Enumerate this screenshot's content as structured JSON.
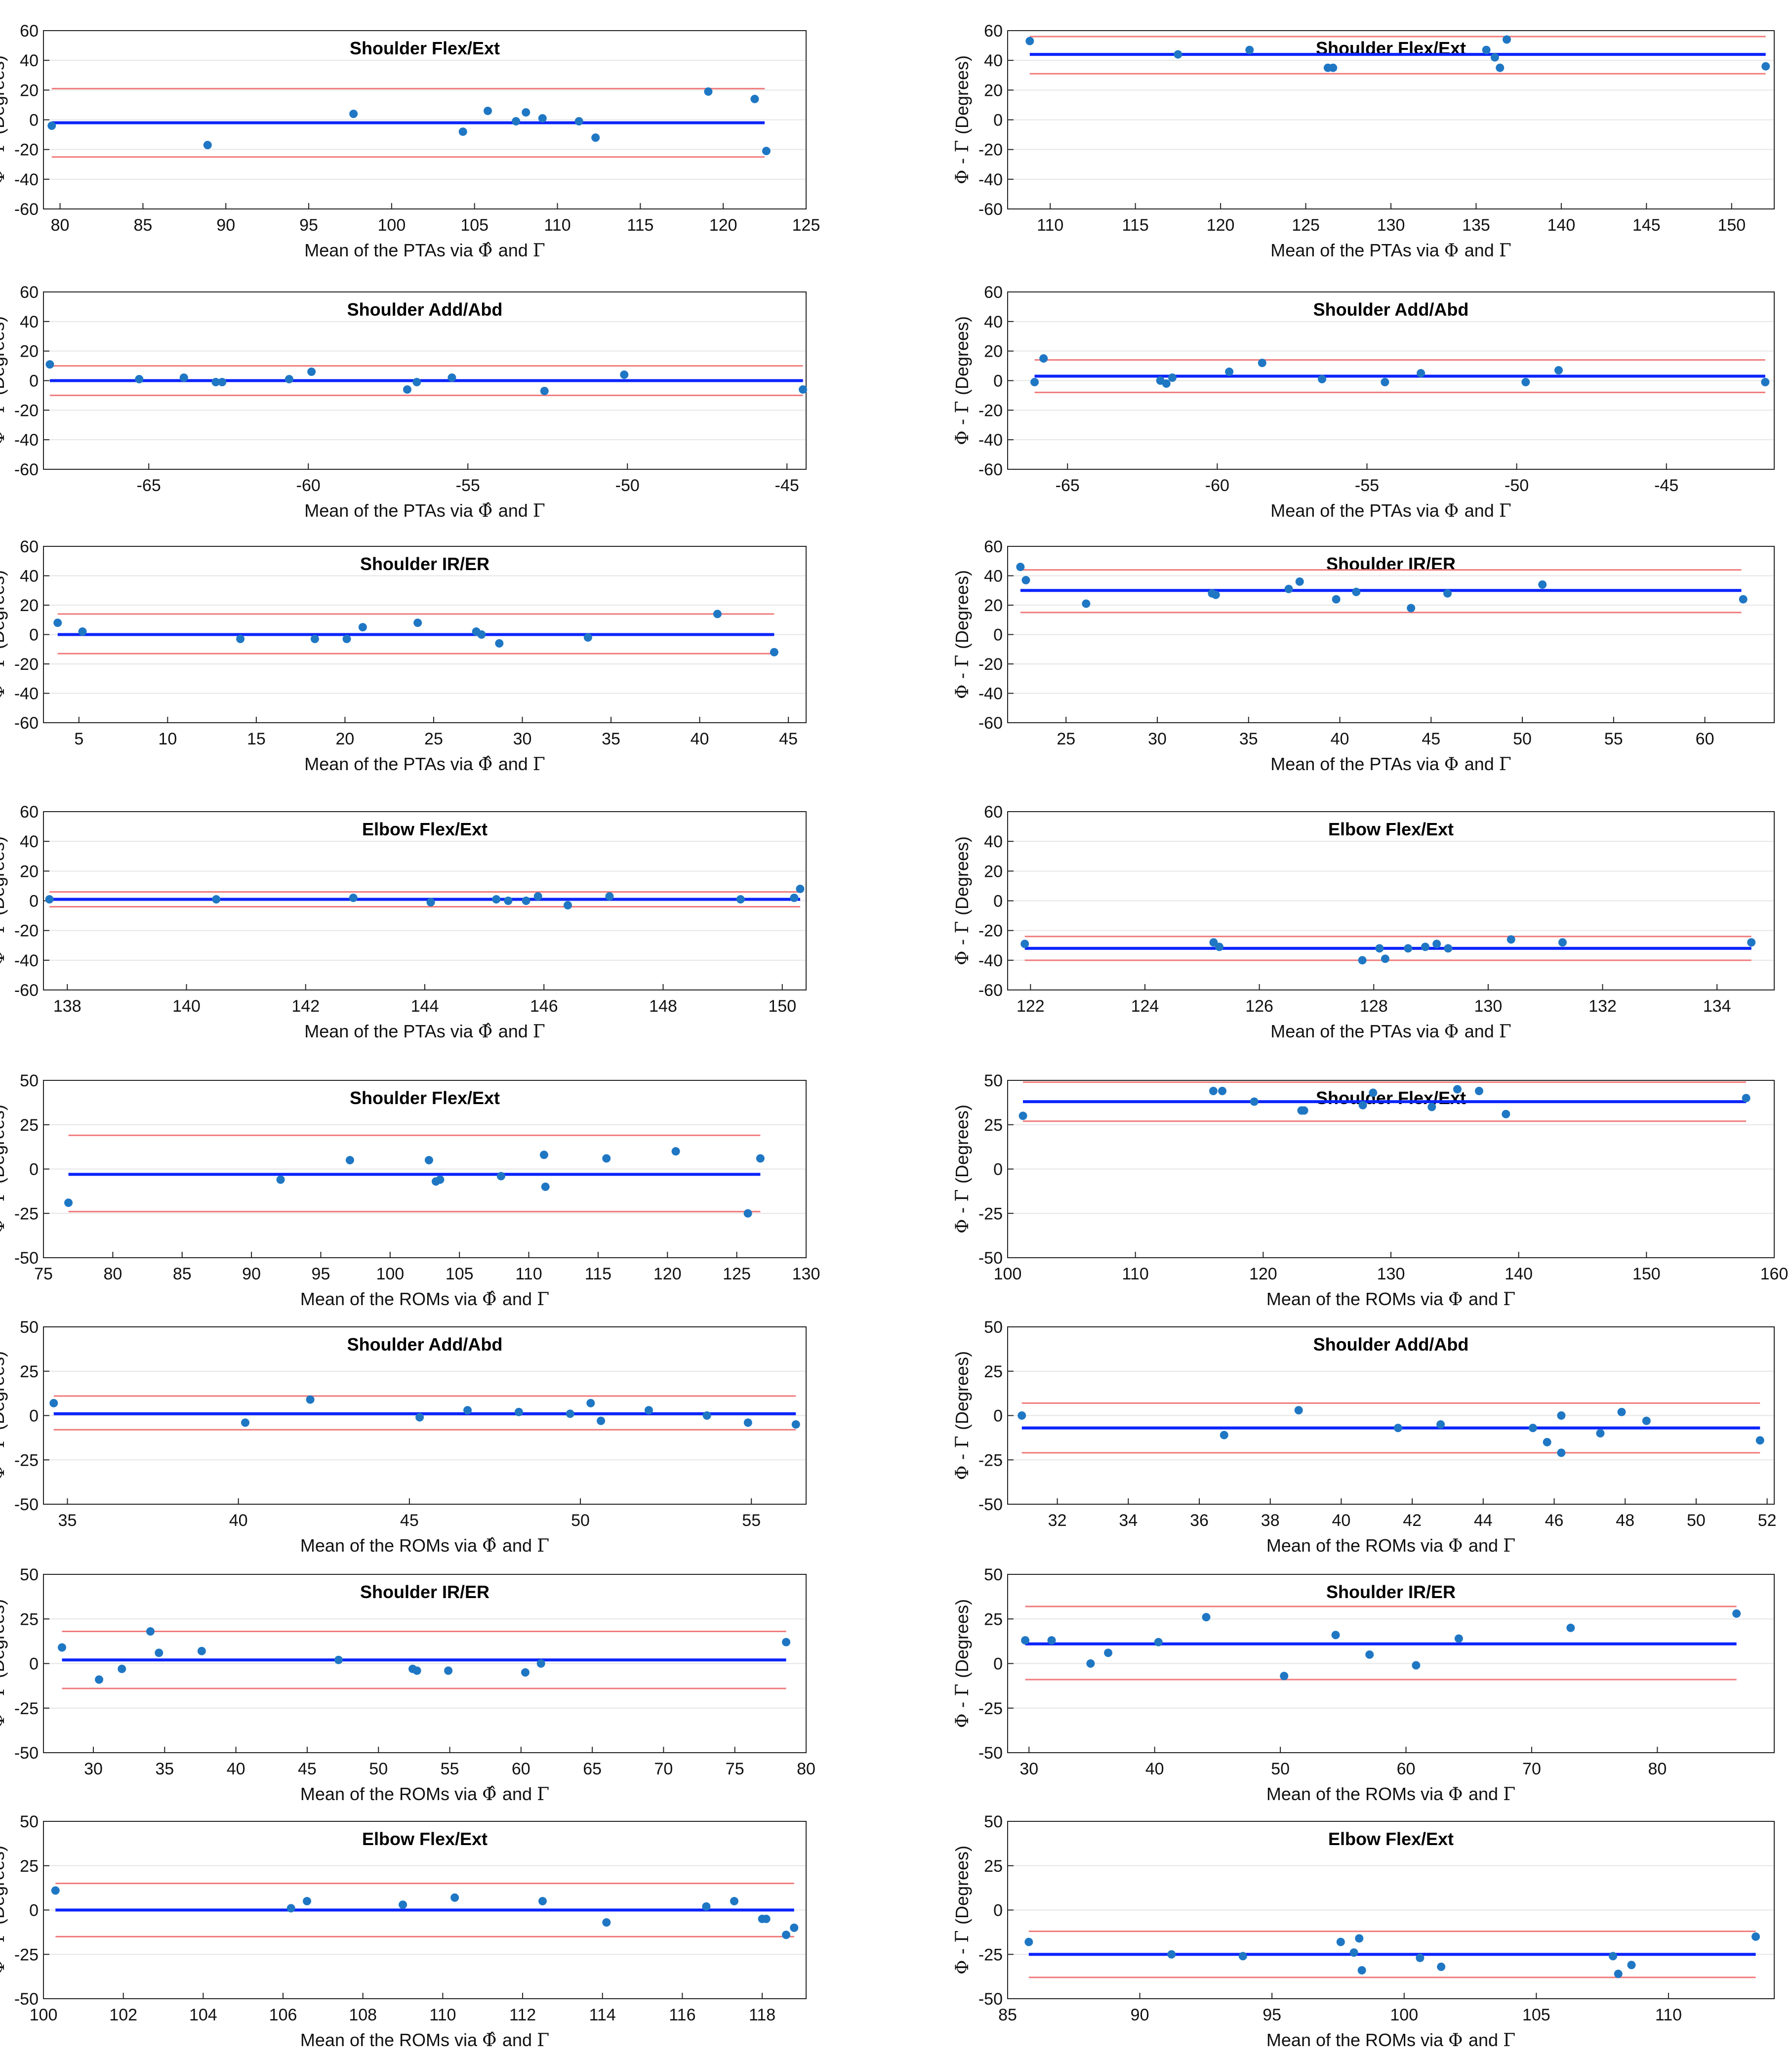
{
  "colors": {
    "mean_line": "#0b24fb",
    "limit_line": "#f07a7a",
    "point": "#1f77c4",
    "axis": "#222222",
    "grid": "#e6e6e6"
  },
  "labels": {
    "ylabel_left": "Φ̂ - Γ",
    "ylabel_right": "Φ - Γ",
    "ylabel_unit": "(Degrees)",
    "pta_prefix": "Mean of the PTAs via",
    "rom_prefix": "Mean of the ROMs via",
    "phi_hat": "Φ̂",
    "phi": "Φ",
    "and": "and",
    "gamma": "Γ"
  },
  "chart_data": [
    {
      "type": "scatter",
      "title": "Shoulder Flex/Ext",
      "xlabel": "Mean of the PTAs via Φ̂ and Γ",
      "ylabel": "Φ̂ - Γ (Degrees)",
      "xlim": [
        79,
        125
      ],
      "ylim": [
        -60,
        60
      ],
      "xticks": [
        80,
        85,
        90,
        95,
        100,
        105,
        110,
        115,
        120,
        125
      ],
      "yticks": [
        -60,
        -40,
        -20,
        0,
        20,
        40,
        60
      ],
      "grid": "horizontal",
      "mean": -2,
      "upper": 21,
      "lower": -25,
      "line_x": [
        79.5,
        122.5
      ],
      "x": [
        79.5,
        88.9,
        97.7,
        104.3,
        105.8,
        107.5,
        108.1,
        109.1,
        111.3,
        112.3,
        119.1,
        121.9,
        122.6
      ],
      "y": [
        -4,
        -17,
        4,
        -8,
        6,
        -1,
        5,
        1,
        -1,
        -12,
        19,
        14,
        -21
      ]
    },
    {
      "type": "scatter",
      "title": "Shoulder Flex/Ext",
      "xlabel": "Mean of the PTAs via Φ and Γ",
      "ylabel": "Φ - Γ (Degrees)",
      "xlim": [
        107.5,
        152.5
      ],
      "ylim": [
        -60,
        60
      ],
      "xticks": [
        110,
        115,
        120,
        125,
        130,
        135,
        140,
        145,
        150
      ],
      "yticks": [
        -60,
        -40,
        -20,
        0,
        20,
        40,
        60
      ],
      "grid": "horizontal",
      "mean": 44,
      "upper": 56,
      "lower": 31,
      "line_x": [
        108.8,
        152
      ],
      "x": [
        108.8,
        117.5,
        121.7,
        126.3,
        126.6,
        135.6,
        136.1,
        136.4,
        136.8,
        152
      ],
      "y": [
        53,
        44,
        47,
        35,
        35,
        47,
        42,
        35,
        54,
        36
      ]
    },
    {
      "type": "scatter",
      "title": "Shoulder Add/Abd",
      "xlabel": "Mean of the PTAs via Φ̂ and Γ",
      "ylabel": "Φ̂ - Γ (Degrees)",
      "xlim": [
        -68.3,
        -44.4
      ],
      "ylim": [
        -60,
        60
      ],
      "xticks": [
        -65,
        -60,
        -55,
        -50,
        -45
      ],
      "yticks": [
        -60,
        -40,
        -20,
        0,
        20,
        40,
        60
      ],
      "grid": "horizontal",
      "mean": 0,
      "upper": 10,
      "lower": -10,
      "line_x": [
        -68.1,
        -44.5
      ],
      "x": [
        -68.1,
        -65.3,
        -63.9,
        -62.9,
        -62.7,
        -60.6,
        -59.9,
        -56.9,
        -56.6,
        -55.5,
        -52.6,
        -50.1,
        -44.5
      ],
      "y": [
        11,
        1,
        2,
        -1,
        -1,
        1,
        6,
        -6,
        -1,
        2,
        -7,
        4,
        -6
      ]
    },
    {
      "type": "scatter",
      "title": "Shoulder Add/Abd",
      "xlabel": "Mean of the PTAs via Φ and Γ",
      "ylabel": "Φ - Γ (Degrees)",
      "xlim": [
        -67,
        -41.4
      ],
      "ylim": [
        -60,
        60
      ],
      "xticks": [
        -65,
        -60,
        -55,
        -50,
        -45
      ],
      "yticks": [
        -60,
        -40,
        -20,
        0,
        20,
        40,
        60
      ],
      "grid": "horizontal",
      "mean": 3,
      "upper": 14,
      "lower": -8,
      "line_x": [
        -66.1,
        -41.7
      ],
      "x": [
        -66.1,
        -65.8,
        -61.9,
        -61.7,
        -61.5,
        -59.6,
        -58.5,
        -56.5,
        -54.4,
        -53.2,
        -49.7,
        -48.6,
        -41.7
      ],
      "y": [
        -1,
        15,
        0,
        -2,
        2,
        6,
        12,
        1,
        -1,
        5,
        -1,
        7,
        -1
      ]
    },
    {
      "type": "scatter",
      "title": "Shoulder IR/ER",
      "xlabel": "Mean of the PTAs via Φ̂ and Γ",
      "ylabel": "Φ̂ - Γ (Degrees)",
      "xlim": [
        3,
        46
      ],
      "ylim": [
        -60,
        60
      ],
      "xticks": [
        5,
        10,
        15,
        20,
        25,
        30,
        35,
        40,
        45
      ],
      "yticks": [
        -60,
        -40,
        -20,
        0,
        20,
        40,
        60
      ],
      "grid": "horizontal",
      "mean": 0,
      "upper": 14,
      "lower": -13,
      "line_x": [
        3.8,
        44.2
      ],
      "x": [
        3.8,
        5.2,
        14.1,
        18.3,
        20.1,
        21.0,
        24.1,
        27.4,
        27.7,
        28.7,
        33.7,
        41.0,
        44.2
      ],
      "y": [
        8,
        2,
        -3,
        -3,
        -3,
        5,
        8,
        2,
        0,
        -6,
        -2,
        14,
        -12
      ]
    },
    {
      "type": "scatter",
      "title": "Shoulder IR/ER",
      "xlabel": "Mean of the PTAs via Φ and Γ",
      "ylabel": "Φ - Γ (Degrees)",
      "xlim": [
        21.8,
        63.8
      ],
      "ylim": [
        -60,
        60
      ],
      "xticks": [
        25,
        30,
        35,
        40,
        45,
        50,
        55,
        60
      ],
      "yticks": [
        -60,
        -40,
        -20,
        0,
        20,
        40,
        60
      ],
      "grid": "horizontal",
      "mean": 30,
      "upper": 44,
      "lower": 15,
      "line_x": [
        22.5,
        62
      ],
      "x": [
        22.5,
        22.8,
        26.1,
        33.0,
        33.2,
        37.2,
        37.8,
        39.8,
        40.9,
        43.9,
        45.9,
        51.1,
        62.1
      ],
      "y": [
        46,
        37,
        21,
        28,
        27,
        31,
        36,
        24,
        29,
        18,
        28,
        34,
        24
      ]
    },
    {
      "type": "scatter",
      "title": "Elbow Flex/Ext",
      "xlabel": "Mean of the PTAs via Φ̂ and Γ",
      "ylabel": "Φ̂ - Γ (Degrees)",
      "xlim": [
        137.6,
        150.4
      ],
      "ylim": [
        -60,
        60
      ],
      "xticks": [
        138,
        140,
        142,
        144,
        146,
        148,
        150
      ],
      "yticks": [
        -60,
        -40,
        -20,
        0,
        20,
        40,
        60
      ],
      "grid": "horizontal",
      "mean": 1,
      "upper": 6,
      "lower": -4,
      "line_x": [
        137.7,
        150.3
      ],
      "x": [
        137.7,
        140.5,
        142.8,
        144.1,
        145.2,
        145.4,
        145.7,
        145.9,
        146.4,
        147.1,
        149.3,
        150.2,
        150.3
      ],
      "y": [
        1,
        1,
        2,
        -1,
        1,
        0,
        0,
        3,
        -3,
        3,
        1,
        2,
        8
      ]
    },
    {
      "type": "scatter",
      "title": "Elbow Flex/Ext",
      "xlabel": "Mean of the PTAs via Φ and Γ",
      "ylabel": "Φ - Γ (Degrees)",
      "xlim": [
        121.6,
        135
      ],
      "ylim": [
        -60,
        60
      ],
      "xticks": [
        122,
        124,
        126,
        128,
        130,
        132,
        134
      ],
      "yticks": [
        -60,
        -40,
        -20,
        0,
        20,
        40,
        60
      ],
      "grid": "horizontal",
      "mean": -32,
      "upper": -24,
      "lower": -40,
      "line_x": [
        121.9,
        134.6
      ],
      "x": [
        121.9,
        125.2,
        125.3,
        127.8,
        128.1,
        128.2,
        128.6,
        128.9,
        129.1,
        129.3,
        130.4,
        131.3,
        134.6
      ],
      "y": [
        -29,
        -28,
        -31,
        -40,
        -32,
        -39,
        -32,
        -31,
        -29,
        -32,
        -26,
        -28,
        -28
      ]
    },
    {
      "type": "scatter",
      "title": "Shoulder Flex/Ext",
      "xlabel": "Mean of the ROMs via Φ̂ and Γ",
      "ylabel": "Φ̂ - Γ (Degrees)",
      "xlim": [
        75,
        130
      ],
      "ylim": [
        -50,
        50
      ],
      "xticks": [
        75,
        80,
        85,
        90,
        95,
        100,
        105,
        110,
        115,
        120,
        125,
        130
      ],
      "yticks": [
        -50,
        -25,
        0,
        25,
        50
      ],
      "grid": "horizontal",
      "mean": -3,
      "upper": 19,
      "lower": -24,
      "line_x": [
        76.8,
        126.7
      ],
      "x": [
        76.8,
        92.1,
        97.1,
        102.8,
        103.3,
        103.6,
        108.0,
        111.1,
        111.2,
        115.6,
        120.6,
        125.8,
        126.7
      ],
      "y": [
        -19,
        -6,
        5,
        5,
        -7,
        -6,
        -4,
        8,
        -10,
        6,
        10,
        -25,
        6
      ]
    },
    {
      "type": "scatter",
      "title": "Shoulder Flex/Ext",
      "xlabel": "Mean of the ROMs via Φ and Γ",
      "ylabel": "Φ - Γ (Degrees)",
      "xlim": [
        100,
        160
      ],
      "ylim": [
        -50,
        50
      ],
      "xticks": [
        100,
        110,
        120,
        130,
        140,
        150,
        160
      ],
      "yticks": [
        -50,
        -25,
        0,
        25,
        50
      ],
      "grid": "horizontal",
      "mean": 38,
      "upper": 49,
      "lower": 27,
      "line_x": [
        101.2,
        157.8
      ],
      "x": [
        101.2,
        116.1,
        116.8,
        119.3,
        123.0,
        123.2,
        127.8,
        128.6,
        133.2,
        135.2,
        136.9,
        139.0,
        157.8
      ],
      "y": [
        30,
        44,
        44,
        38,
        33,
        33,
        36,
        43,
        35,
        45,
        44,
        31,
        40
      ]
    },
    {
      "type": "scatter",
      "title": "Shoulder Add/Abd",
      "xlabel": "Mean of the ROMs via Φ̂ and Γ",
      "ylabel": "Φ̂ - Γ (Degrees)",
      "xlim": [
        34.3,
        56.6
      ],
      "ylim": [
        -50,
        50
      ],
      "xticks": [
        35,
        40,
        45,
        50,
        55
      ],
      "yticks": [
        -50,
        -25,
        0,
        25,
        50
      ],
      "grid": "horizontal",
      "mean": 1,
      "upper": 11,
      "lower": -8,
      "line_x": [
        34.6,
        56.3
      ],
      "x": [
        34.6,
        40.2,
        42.1,
        45.3,
        46.7,
        48.2,
        49.7,
        50.3,
        50.6,
        52.0,
        53.7,
        54.9,
        56.3
      ],
      "y": [
        7,
        -4,
        9,
        -1,
        3,
        2,
        1,
        7,
        -3,
        3,
        0,
        -4,
        -5
      ]
    },
    {
      "type": "scatter",
      "title": "Shoulder Add/Abd",
      "xlabel": "Mean of the ROMs via Φ and Γ",
      "ylabel": "Φ - Γ (Degrees)",
      "xlim": [
        30.6,
        52.2
      ],
      "ylim": [
        -50,
        50
      ],
      "xticks": [
        32,
        34,
        36,
        38,
        40,
        42,
        44,
        46,
        48,
        50,
        52
      ],
      "yticks": [
        -50,
        -25,
        0,
        25,
        50
      ],
      "grid": "horizontal",
      "mean": -7,
      "upper": 7,
      "lower": -21,
      "line_x": [
        31,
        51.8
      ],
      "x": [
        31.0,
        36.7,
        38.8,
        41.6,
        42.8,
        45.4,
        45.8,
        46.2,
        46.2,
        47.3,
        47.9,
        48.6,
        51.8
      ],
      "y": [
        0,
        -11,
        3,
        -7,
        -5,
        -7,
        -15,
        -21,
        0,
        -10,
        2,
        -3,
        -14
      ]
    },
    {
      "type": "scatter",
      "title": "Shoulder IR/ER",
      "xlabel": "Mean of the ROMs via Φ̂ and Γ",
      "ylabel": "Φ̂ - Γ (Degrees)",
      "xlim": [
        26.5,
        80
      ],
      "ylim": [
        -50,
        50
      ],
      "xticks": [
        30,
        35,
        40,
        45,
        50,
        55,
        60,
        65,
        70,
        75,
        80
      ],
      "yticks": [
        -50,
        -25,
        0,
        25,
        50
      ],
      "grid": "horizontal",
      "mean": 2,
      "upper": 18,
      "lower": -14,
      "line_x": [
        27.8,
        78.6
      ],
      "x": [
        27.8,
        30.4,
        32.0,
        34.0,
        34.6,
        37.6,
        47.2,
        52.4,
        52.7,
        54.9,
        60.3,
        61.4,
        78.6
      ],
      "y": [
        9,
        -9,
        -3,
        18,
        6,
        7,
        2,
        -3,
        -4,
        -4,
        -5,
        0,
        12
      ]
    },
    {
      "type": "scatter",
      "title": "Shoulder IR/ER",
      "xlabel": "Mean of the ROMs via Φ and Γ",
      "ylabel": "Φ - Γ (Degrees)",
      "xlim": [
        28.3,
        89.3
      ],
      "ylim": [
        -50,
        50
      ],
      "xticks": [
        30,
        40,
        50,
        60,
        70,
        80
      ],
      "yticks": [
        -50,
        -25,
        0,
        25,
        50
      ],
      "grid": "horizontal",
      "mean": 11,
      "upper": 32,
      "lower": -9,
      "line_x": [
        29.7,
        86.3
      ],
      "x": [
        29.7,
        31.8,
        34.9,
        36.3,
        40.3,
        44.1,
        50.3,
        54.4,
        57.1,
        60.8,
        64.2,
        73.1,
        86.3
      ],
      "y": [
        13,
        13,
        0,
        6,
        12,
        26,
        -7,
        16,
        5,
        -1,
        14,
        20,
        28
      ]
    },
    {
      "type": "scatter",
      "title": "Elbow Flex/Ext",
      "xlabel": "Mean of the ROMs via Φ̂ and Γ",
      "ylabel": "Φ̂ - Γ (Degrees)",
      "xlim": [
        100,
        119.1
      ],
      "ylim": [
        -50,
        50
      ],
      "xticks": [
        100,
        102,
        104,
        106,
        108,
        110,
        112,
        114,
        116,
        118
      ],
      "yticks": [
        -50,
        -25,
        0,
        25,
        50
      ],
      "grid": "horizontal",
      "mean": 0,
      "upper": 15,
      "lower": -15,
      "line_x": [
        100.3,
        118.8
      ],
      "x": [
        100.3,
        106.2,
        106.6,
        109.0,
        110.3,
        112.5,
        114.1,
        116.6,
        117.3,
        118.0,
        118.1,
        118.6,
        118.8
      ],
      "y": [
        11,
        1,
        5,
        3,
        7,
        5,
        -7,
        2,
        5,
        -5,
        -5,
        -14,
        -10
      ]
    },
    {
      "type": "scatter",
      "title": "Elbow Flex/Ext",
      "xlabel": "Mean of the ROMs via Φ and Γ",
      "ylabel": "Φ - Γ (Degrees)",
      "xlim": [
        85,
        114
      ],
      "ylim": [
        -50,
        50
      ],
      "xticks": [
        85,
        90,
        95,
        100,
        105,
        110
      ],
      "yticks": [
        -50,
        -25,
        0,
        25,
        50
      ],
      "grid": "horizontal",
      "mean": -25,
      "upper": -12,
      "lower": -38,
      "line_x": [
        85.8,
        113.3
      ],
      "x": [
        85.8,
        91.2,
        93.9,
        97.6,
        98.1,
        98.3,
        98.4,
        100.6,
        101.4,
        107.9,
        108.1,
        108.6,
        113.3
      ],
      "y": [
        -18,
        -25,
        -26,
        -18,
        -24,
        -16,
        -34,
        -27,
        -32,
        -26,
        -36,
        -31,
        -15
      ]
    }
  ]
}
